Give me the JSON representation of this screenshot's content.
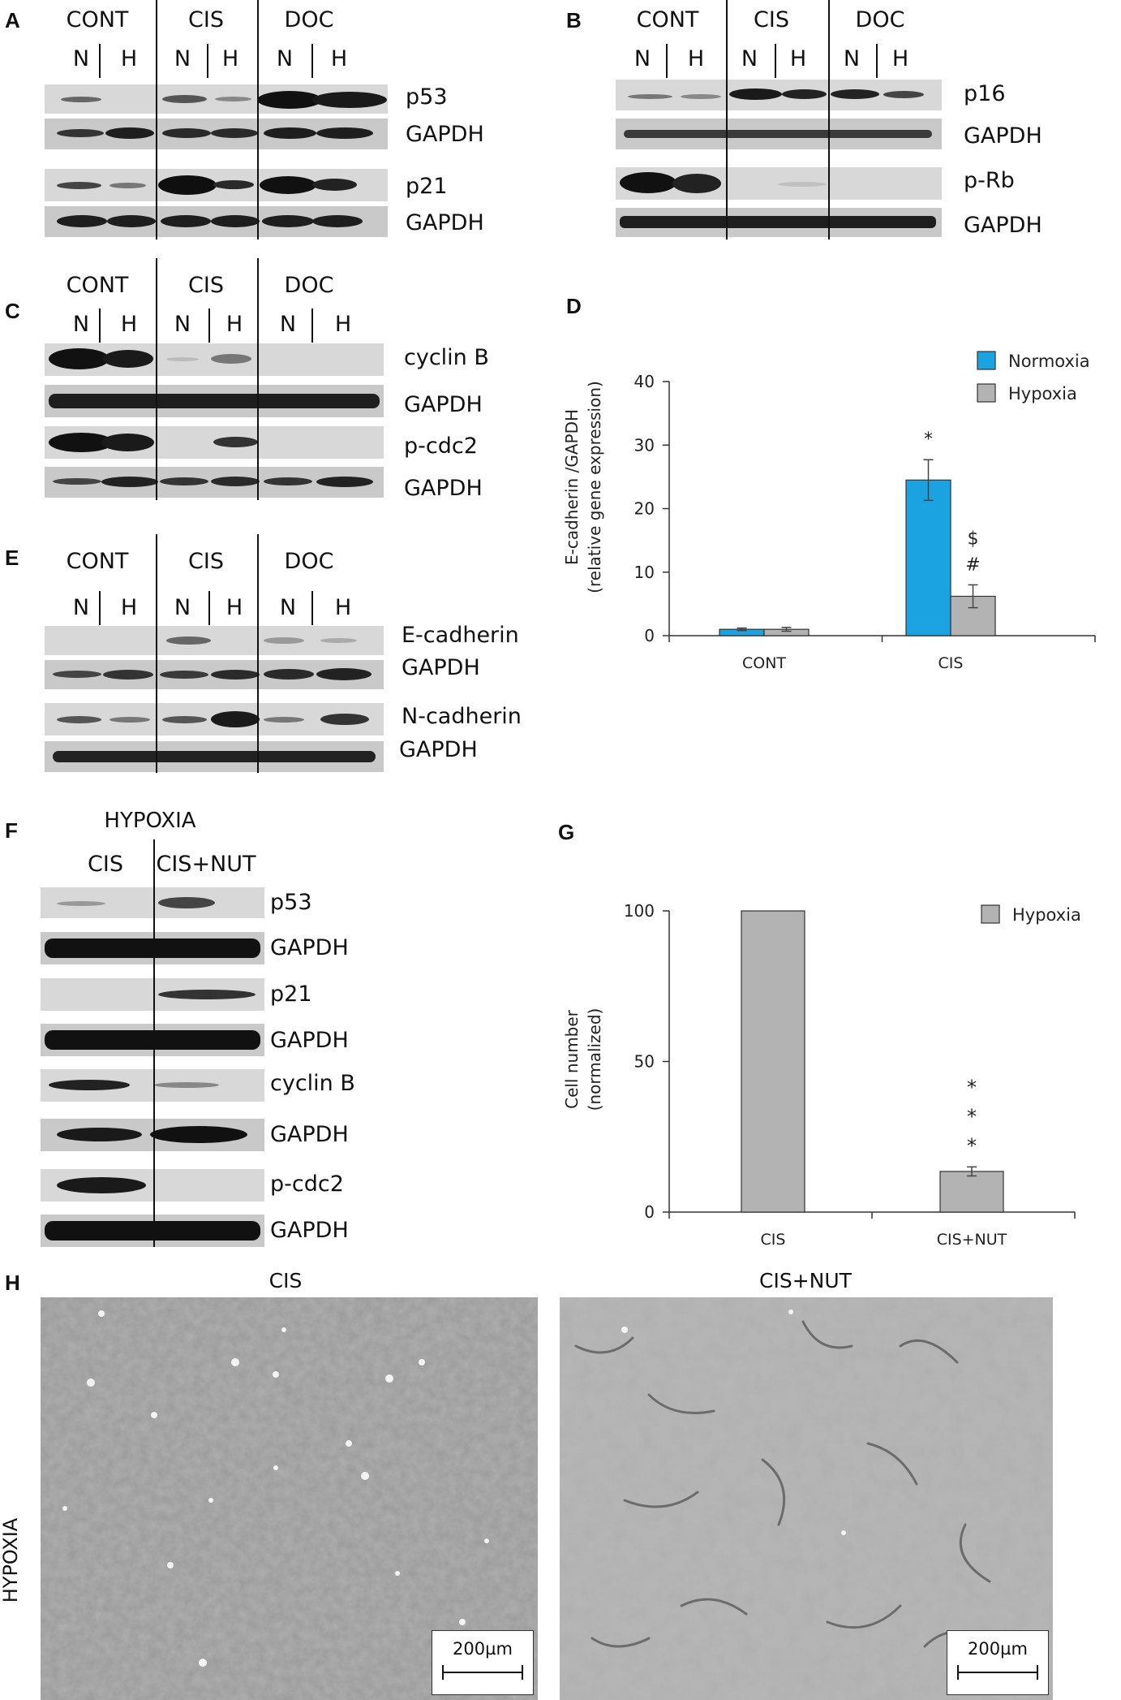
{
  "panels": {
    "A": {
      "label": "A",
      "groups": [
        "CONT",
        "CIS",
        "DOC"
      ],
      "lanes": [
        "N",
        "H",
        "N",
        "H",
        "N",
        "H"
      ],
      "bands": [
        "p53",
        "GAPDH",
        "p21",
        "GAPDH"
      ]
    },
    "B": {
      "label": "B",
      "groups": [
        "CONT",
        "CIS",
        "DOC"
      ],
      "lanes": [
        "N",
        "H",
        "N",
        "H",
        "N",
        "H"
      ],
      "bands": [
        "p16",
        "GAPDH",
        "p-Rb",
        "GAPDH"
      ]
    },
    "C": {
      "label": "C",
      "groups": [
        "CONT",
        "CIS",
        "DOC"
      ],
      "lanes": [
        "N",
        "H",
        "N",
        "H",
        "N",
        "H"
      ],
      "bands": [
        "cyclin B",
        "GAPDH",
        "p-cdc2",
        "GAPDH"
      ]
    },
    "E": {
      "label": "E",
      "groups": [
        "CONT",
        "CIS",
        "DOC"
      ],
      "lanes": [
        "N",
        "H",
        "N",
        "H",
        "N",
        "H"
      ],
      "bands": [
        "E-cadherin",
        "GAPDH",
        "N-cadherin",
        "GAPDH"
      ]
    },
    "F": {
      "label": "F",
      "condition": "HYPOXIA",
      "groups": [
        "CIS",
        "CIS+NUT"
      ],
      "bands": [
        "p53",
        "GAPDH",
        "p21",
        "GAPDH",
        "cyclin B",
        "GAPDH",
        "p-cdc2",
        "GAPDH"
      ]
    },
    "D": {
      "label": "D"
    },
    "G": {
      "label": "G"
    },
    "H": {
      "label": "H",
      "side_label": "HYPOXIA",
      "images": [
        "CIS",
        "CIS+NUT"
      ],
      "scale_bar": "200µm"
    }
  },
  "chart_data": [
    {
      "id": "D",
      "type": "bar",
      "categories": [
        "CONT",
        "CIS"
      ],
      "series": [
        {
          "name": "Normoxia",
          "color": "#1aa3e0",
          "values": [
            1.0,
            24.5
          ],
          "errors": [
            0.2,
            3.2
          ]
        },
        {
          "name": "Hypoxia",
          "color": "#b3b3b3",
          "values": [
            1.0,
            6.2
          ],
          "errors": [
            0.3,
            1.8
          ]
        }
      ],
      "annotations": [
        {
          "category": "CIS",
          "series": "Normoxia",
          "text": "*"
        },
        {
          "category": "CIS",
          "series": "Hypoxia",
          "text": "$"
        },
        {
          "category": "CIS",
          "series": "Hypoxia",
          "text": "#"
        }
      ],
      "ylabel": "E-cadherin /GAPDH",
      "ylabel2": "(relative gene expression)",
      "yticks": [
        0,
        10,
        20,
        30,
        40
      ],
      "ylim": [
        0,
        40
      ],
      "legend": "top-right"
    },
    {
      "id": "G",
      "type": "bar",
      "categories": [
        "CIS",
        "CIS+NUT"
      ],
      "series": [
        {
          "name": "Hypoxia",
          "color": "#b3b3b3",
          "values": [
            100,
            13.5
          ],
          "errors": [
            0,
            1.5
          ]
        }
      ],
      "annotations": [
        {
          "category": "CIS+NUT",
          "series": "Hypoxia",
          "text": "*"
        },
        {
          "category": "CIS+NUT",
          "series": "Hypoxia",
          "text": "*"
        },
        {
          "category": "CIS+NUT",
          "series": "Hypoxia",
          "text": "*"
        }
      ],
      "ylabel": "Cell number",
      "ylabel2": "(normalized)",
      "yticks": [
        0,
        50,
        100
      ],
      "ylim": [
        0,
        100
      ],
      "legend": "top-right"
    }
  ]
}
